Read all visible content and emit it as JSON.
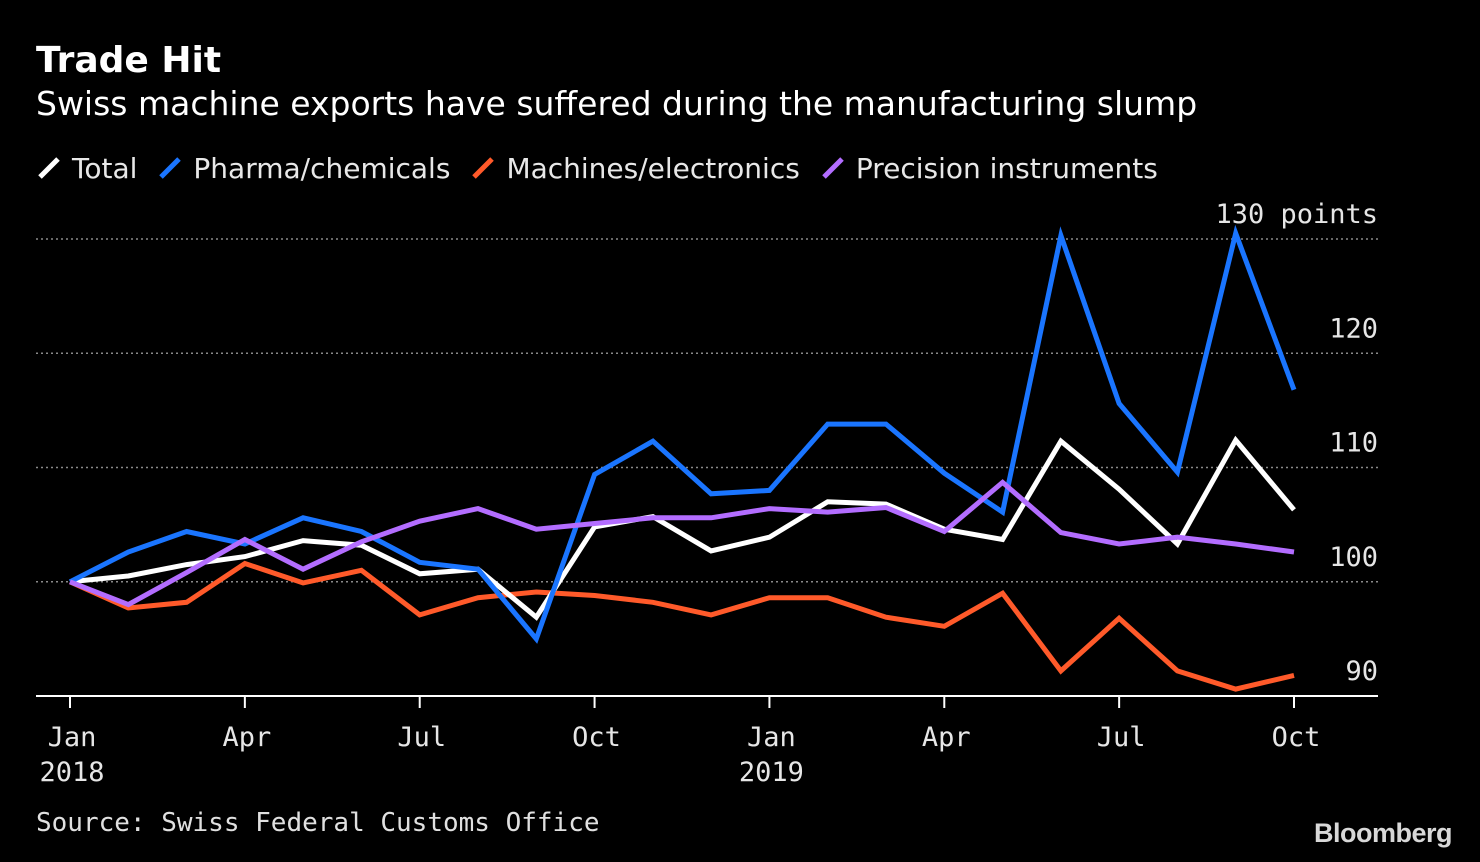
{
  "chart_data": {
    "type": "line",
    "title": "Trade Hit",
    "subtitle": "Swiss machine exports have suffered during the manufacturing slump",
    "y_unit_label": "130 points",
    "ylim": [
      90,
      130
    ],
    "yticks": [
      90,
      100,
      110,
      120,
      130
    ],
    "ytick_labels": [
      "90",
      "100",
      "110",
      "120",
      "130 points"
    ],
    "grid": true,
    "legend_position": "top-left",
    "x": [
      "2018-01",
      "2018-02",
      "2018-03",
      "2018-04",
      "2018-05",
      "2018-06",
      "2018-07",
      "2018-08",
      "2018-09",
      "2018-10",
      "2018-11",
      "2018-12",
      "2019-01",
      "2019-02",
      "2019-03",
      "2019-04",
      "2019-05",
      "2019-06",
      "2019-07",
      "2019-08",
      "2019-09",
      "2019-10"
    ],
    "xticks": [
      {
        "month": "Jan",
        "year": "2018",
        "x": "2018-01"
      },
      {
        "month": "Apr",
        "year": "",
        "x": "2018-04"
      },
      {
        "month": "Jul",
        "year": "",
        "x": "2018-07"
      },
      {
        "month": "Oct",
        "year": "",
        "x": "2018-10"
      },
      {
        "month": "Jan",
        "year": "2019",
        "x": "2019-01"
      },
      {
        "month": "Apr",
        "year": "",
        "x": "2019-04"
      },
      {
        "month": "Jul",
        "year": "",
        "x": "2019-07"
      },
      {
        "month": "Oct",
        "year": "",
        "x": "2019-10"
      }
    ],
    "series": [
      {
        "name": "Total",
        "color": "#ffffff",
        "values": [
          100,
          100.5,
          101.5,
          102.2,
          103.6,
          103.2,
          100.7,
          101.1,
          96.9,
          104.8,
          105.7,
          102.7,
          103.9,
          107.0,
          106.8,
          104.6,
          103.7,
          112.3,
          108.1,
          103.3,
          112.4,
          106.3
        ]
      },
      {
        "name": "Pharma/chemicals",
        "color": "#1a75ff",
        "values": [
          100,
          102.6,
          104.4,
          103.3,
          105.6,
          104.4,
          101.7,
          101.1,
          95.0,
          109.4,
          112.3,
          107.7,
          108.0,
          113.8,
          113.8,
          109.5,
          106.1,
          130.3,
          115.6,
          109.6,
          130.5,
          116.8
        ]
      },
      {
        "name": "Machines/electronics",
        "color": "#ff5a2a",
        "values": [
          100,
          97.7,
          98.2,
          101.6,
          99.9,
          101.0,
          97.1,
          98.6,
          99.1,
          98.8,
          98.2,
          97.1,
          98.6,
          98.6,
          96.9,
          96.1,
          99.0,
          92.2,
          96.8,
          92.2,
          90.6,
          91.8
        ]
      },
      {
        "name": "Precision instruments",
        "color": "#b36dff",
        "values": [
          100,
          98.0,
          100.8,
          103.7,
          101.1,
          103.5,
          105.3,
          106.4,
          104.6,
          105.1,
          105.6,
          105.6,
          106.4,
          106.1,
          106.5,
          104.4,
          108.7,
          104.3,
          103.3,
          103.9,
          103.3,
          102.6
        ]
      }
    ]
  },
  "footer": {
    "source": "Source: Swiss Federal Customs Office",
    "logo": "Bloomberg"
  }
}
